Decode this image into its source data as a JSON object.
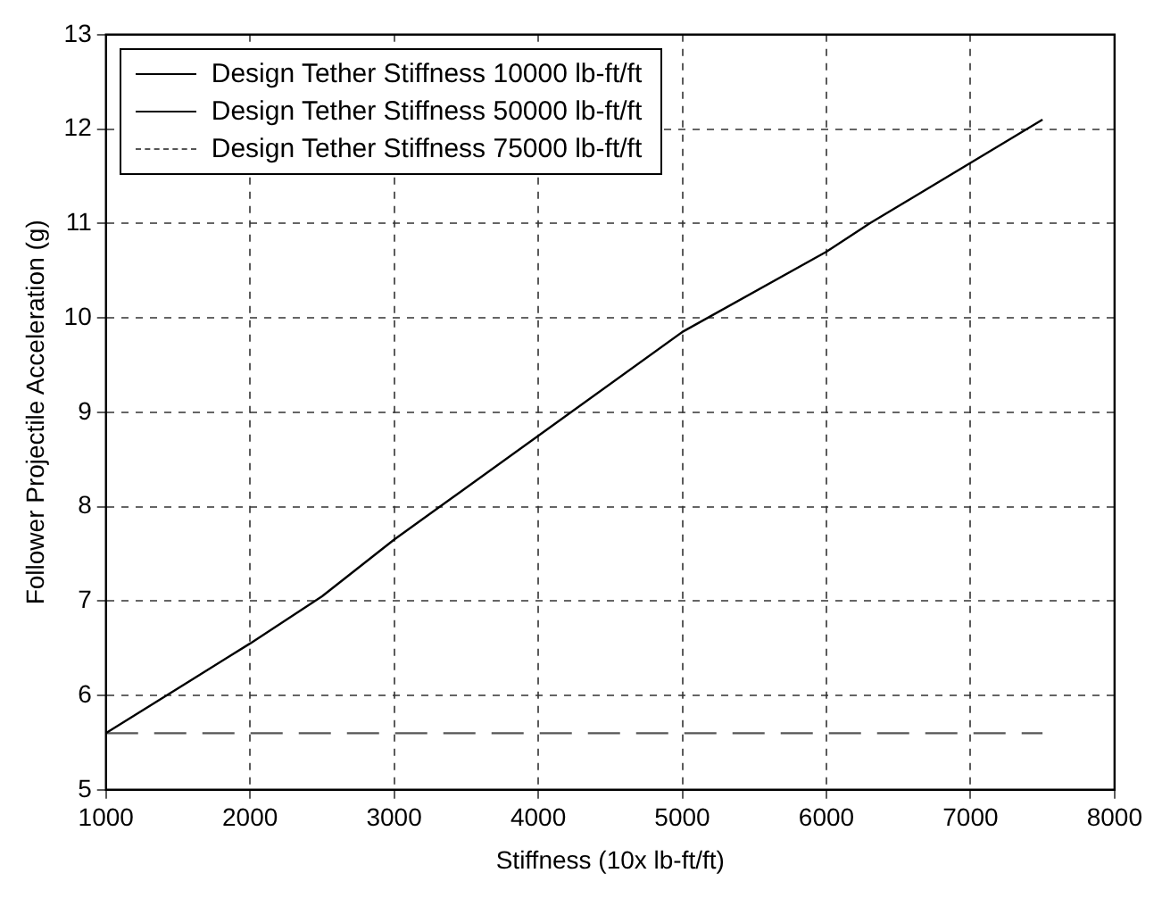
{
  "chart_data": {
    "type": "line",
    "xlabel": "Stiffness (10x lb-ft/ft)",
    "ylabel": "Follower Projectile Acceleration (g)",
    "xlim": [
      1000,
      8000
    ],
    "xticks": [
      1000,
      2000,
      3000,
      4000,
      5000,
      6000,
      7000,
      8000
    ],
    "ylim": [
      5,
      13
    ],
    "yticks": [
      5,
      6,
      7,
      8,
      9,
      10,
      11,
      12,
      13
    ],
    "grid": true,
    "legend": "top left",
    "series": [
      {
        "name": "Design Tether Stiffness 10000 lb-ft/ft",
        "color": "#000000",
        "line_style": "solid",
        "x": [
          1000,
          2000,
          2500,
          3000,
          4000,
          5000,
          6000,
          6300,
          7500
        ],
        "values": [
          5.6,
          6.55,
          7.05,
          7.65,
          8.75,
          9.85,
          10.7,
          11.0,
          12.1
        ]
      },
      {
        "name": "Design Tether Stiffness 50000 lb-ft/ft",
        "color": "#000000",
        "line_style": "solid"
      },
      {
        "name": "Design Tether Stiffness 75000 lb-ft/ft",
        "color": "#555555",
        "line_style": "dashed",
        "x": [
          1000,
          7500
        ],
        "values": [
          5.6,
          5.6
        ]
      }
    ]
  }
}
